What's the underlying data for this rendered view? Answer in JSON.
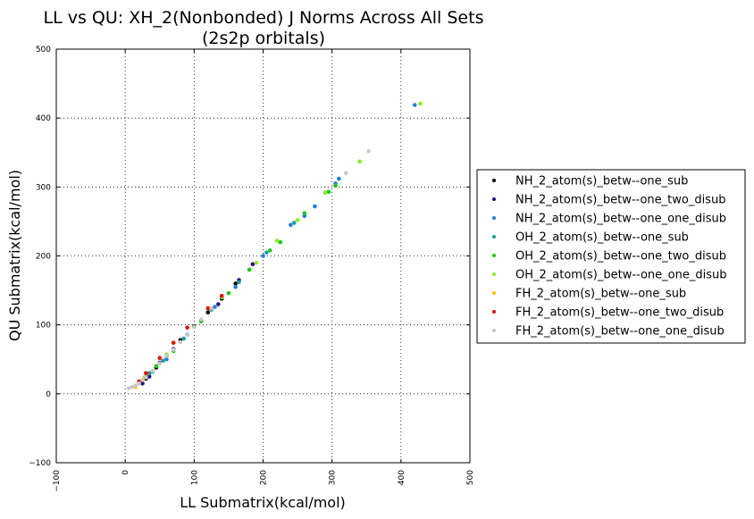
{
  "chart_data": {
    "type": "scatter",
    "title": "LL vs QU: XH_2(Nonbonded) J Norms Across All Sets",
    "subtitle": "(2s2p orbitals)",
    "xlabel": "LL Submatrix(kcal/mol)",
    "ylabel": "QU Submatrix(kcal/mol)",
    "xlim": [
      -100,
      500
    ],
    "ylim": [
      -100,
      500
    ],
    "xticks": [
      "−100",
      "0",
      "100",
      "200",
      "300",
      "400",
      "500"
    ],
    "yticks": [
      "−100",
      "0",
      "100",
      "200",
      "300",
      "400",
      "500"
    ],
    "grid": true,
    "legend_position": "right, outside plot",
    "series": [
      {
        "name": "NH_2_atom(s)_betw--one_sub",
        "color": "#000000",
        "x": [
          30,
          45,
          60,
          80,
          100,
          120,
          140,
          160
        ],
        "y": [
          22,
          38,
          55,
          78,
          98,
          118,
          138,
          160
        ]
      },
      {
        "name": "NH_2_atom(s)_betw--one_two_disub",
        "color": "#2a0f7d",
        "x": [
          25,
          35,
          50,
          70,
          90,
          110,
          135,
          165,
          185
        ],
        "y": [
          15,
          25,
          45,
          65,
          86,
          106,
          130,
          165,
          188
        ]
      },
      {
        "name": "NH_2_atom(s)_betw--one_one_disub",
        "color": "#1f7fd6",
        "x": [
          40,
          60,
          90,
          130,
          160,
          200,
          240,
          260,
          275,
          290,
          305,
          310,
          420
        ],
        "y": [
          32,
          50,
          86,
          126,
          155,
          200,
          245,
          258,
          272,
          292,
          305,
          312,
          419
        ]
      },
      {
        "name": "OH_2_atom(s)_betw--one_sub",
        "color": "#16a39a",
        "x": [
          35,
          55,
          85,
          125,
          165,
          205,
          245
        ],
        "y": [
          30,
          48,
          80,
          122,
          162,
          205,
          248
        ]
      },
      {
        "name": "OH_2_atom(s)_betw--one_two_disub",
        "color": "#22c41b",
        "x": [
          30,
          45,
          70,
          110,
          150,
          180,
          210,
          225,
          260,
          295,
          305
        ],
        "y": [
          25,
          40,
          62,
          105,
          146,
          180,
          208,
          220,
          262,
          293,
          302
        ]
      },
      {
        "name": "OH_2_atom(s)_betw--one_one_disub",
        "color": "#88ee22",
        "x": [
          20,
          40,
          60,
          100,
          140,
          190,
          220,
          250,
          290,
          340,
          428
        ],
        "y": [
          15,
          33,
          57,
          97,
          140,
          190,
          222,
          252,
          292,
          337,
          421
        ]
      },
      {
        "name": "FH_2_atom(s)_betw--one_sub",
        "color": "#ffc107",
        "x": [
          15,
          20,
          28
        ],
        "y": [
          10,
          16,
          24
        ]
      },
      {
        "name": "FH_2_atom(s)_betw--one_two_disub",
        "color": "#dd1100",
        "x": [
          20,
          30,
          50,
          70,
          90,
          120,
          140
        ],
        "y": [
          18,
          30,
          52,
          74,
          96,
          124,
          142
        ]
      },
      {
        "name": "FH_2_atom(s)_betw--one_one_disub",
        "color": "#c8c8c8",
        "x": [
          5,
          10,
          15,
          20,
          25,
          30,
          40,
          50,
          60,
          70,
          80,
          90,
          100,
          110,
          125,
          320,
          353
        ],
        "y": [
          8,
          10,
          12,
          15,
          20,
          24,
          33,
          44,
          55,
          64,
          75,
          86,
          97,
          108,
          124,
          320,
          352
        ]
      }
    ]
  }
}
